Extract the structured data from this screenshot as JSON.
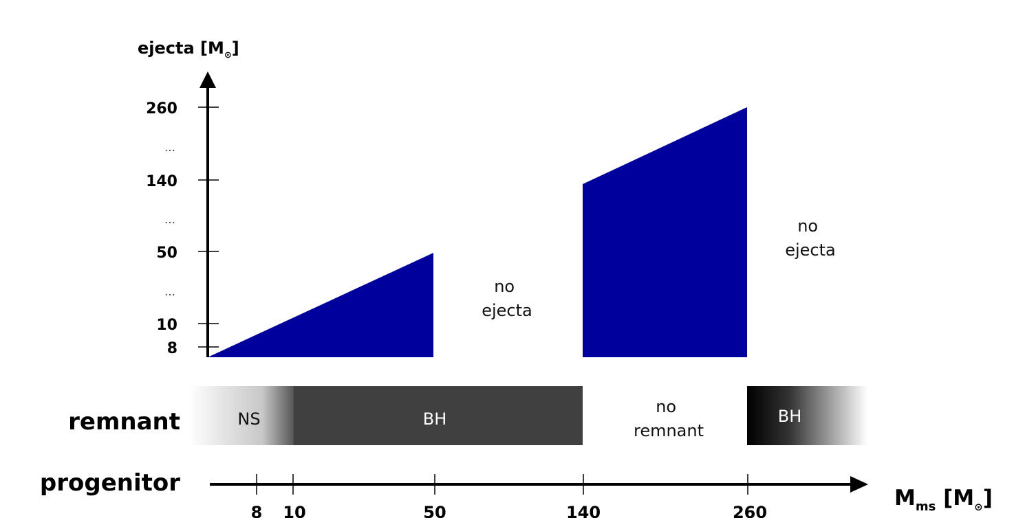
{
  "y_axis": {
    "title": {
      "main": "ejecta [M",
      "sub": "⊙",
      "end": "]"
    },
    "ticks": [
      "260",
      "…",
      "140",
      "…",
      "50",
      "…",
      "10",
      "8"
    ]
  },
  "regions": [
    {
      "lines": [
        "no",
        "ejecta"
      ]
    },
    {
      "lines": [
        "no",
        "ejecta"
      ]
    }
  ],
  "remnant": {
    "label": "remnant",
    "bands": [
      "NS",
      "BH",
      "BH"
    ],
    "none": [
      "no",
      "remnant"
    ]
  },
  "progenitor": {
    "label": "progenitor",
    "ticks": [
      "8",
      "10",
      "…",
      "50",
      "…",
      "140",
      "…",
      "260"
    ],
    "axis_title": {
      "main": "M",
      "sub": "ms",
      "mid": " [M",
      "sub2": "⊙",
      "end": "]"
    }
  }
}
